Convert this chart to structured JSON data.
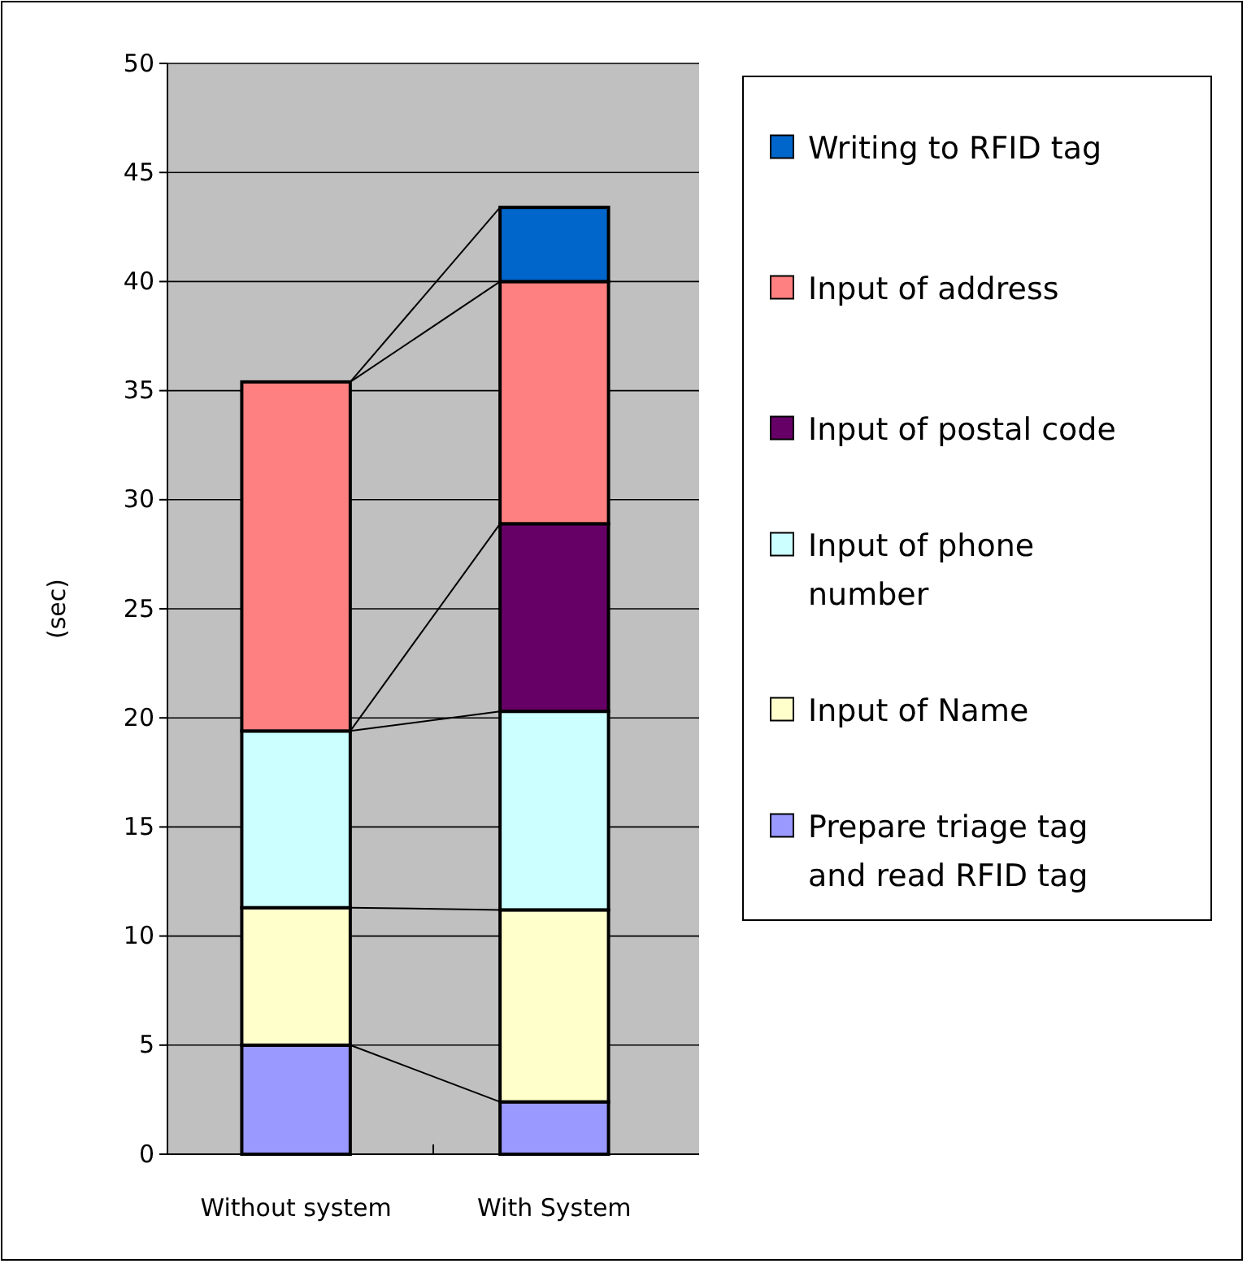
{
  "chart_data": {
    "type": "bar",
    "stacked": true,
    "ylabel": "(sec)",
    "categories": [
      "Without system",
      "With System"
    ],
    "series": [
      {
        "name": "Prepare triage tag and read RFID tag",
        "color": "#9999ff",
        "values": [
          5.0,
          2.4
        ]
      },
      {
        "name": "Input of Name",
        "color": "#ffffcc",
        "values": [
          6.3,
          8.8
        ]
      },
      {
        "name": "Input of phone number",
        "color": "#ccffff",
        "values": [
          8.1,
          9.1
        ]
      },
      {
        "name": "Input of postal code",
        "color": "#660066",
        "values": [
          null,
          8.6
        ]
      },
      {
        "name": "Input of address",
        "color": "#ff8080",
        "values": [
          16.0,
          11.1
        ]
      },
      {
        "name": "Writing to RFID tag",
        "color": "#0066cc",
        "values": [
          null,
          3.4
        ]
      }
    ],
    "ylim": [
      0,
      50
    ],
    "yticks": [
      0,
      5,
      10,
      15,
      20,
      25,
      30,
      35,
      40,
      45,
      50
    ],
    "grid": "y",
    "legend": "right"
  }
}
